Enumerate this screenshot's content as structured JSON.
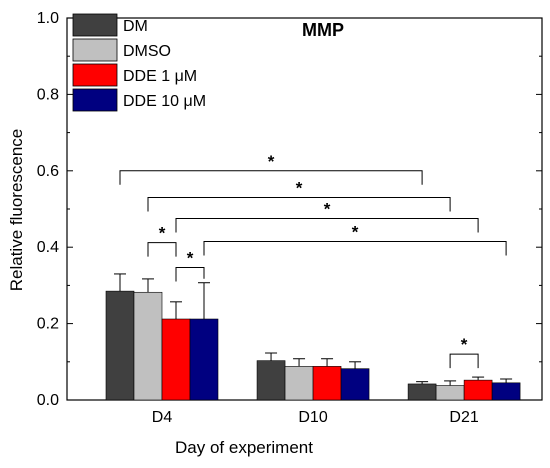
{
  "chart_data": {
    "type": "bar",
    "title": "MMP",
    "xlabel": "Day of experiment",
    "ylabel": "Relative fluorescence",
    "ylim": [
      0,
      1.0
    ],
    "yticks": [
      "0.0",
      "0.2",
      "0.4",
      "0.6",
      "0.8",
      "1.0"
    ],
    "categories": [
      "D4",
      "D10",
      "D21"
    ],
    "legend_position": "top-left",
    "grid": false,
    "series": [
      {
        "name": "DM",
        "color": "#404040",
        "values": [
          0.285,
          0.103,
          0.042
        ],
        "errors": [
          0.045,
          0.02,
          0.006
        ]
      },
      {
        "name": "DMSO",
        "color": "#c0c0c0",
        "values": [
          0.282,
          0.088,
          0.038
        ],
        "errors": [
          0.035,
          0.02,
          0.012
        ]
      },
      {
        "name": "DDE 1 μM",
        "color": "#ff0000",
        "values": [
          0.212,
          0.088,
          0.052
        ],
        "errors": [
          0.045,
          0.02,
          0.008
        ]
      },
      {
        "name": "DDE 10 μM",
        "color": "#000080",
        "values": [
          0.212,
          0.082,
          0.045
        ],
        "errors": [
          0.095,
          0.018,
          0.01
        ]
      }
    ],
    "significance": [
      {
        "label": "*",
        "from": [
          0,
          0
        ],
        "to": [
          2,
          0
        ],
        "level": 0.6
      },
      {
        "label": "*",
        "from": [
          0,
          1
        ],
        "to": [
          2,
          1
        ],
        "level": 0.53
      },
      {
        "label": "*",
        "from": [
          0,
          2
        ],
        "to": [
          2,
          2
        ],
        "level": 0.475
      },
      {
        "label": "*",
        "from": [
          0,
          3
        ],
        "to": [
          2,
          3
        ],
        "level": 0.415
      },
      {
        "label": "*",
        "from": [
          0,
          1
        ],
        "to": [
          0,
          2
        ],
        "level": 0.412
      },
      {
        "label": "*",
        "from": [
          0,
          2
        ],
        "to": [
          0,
          3
        ],
        "level": 0.347
      },
      {
        "label": "*",
        "from": [
          2,
          1
        ],
        "to": [
          2,
          2
        ],
        "level": 0.12
      }
    ]
  }
}
